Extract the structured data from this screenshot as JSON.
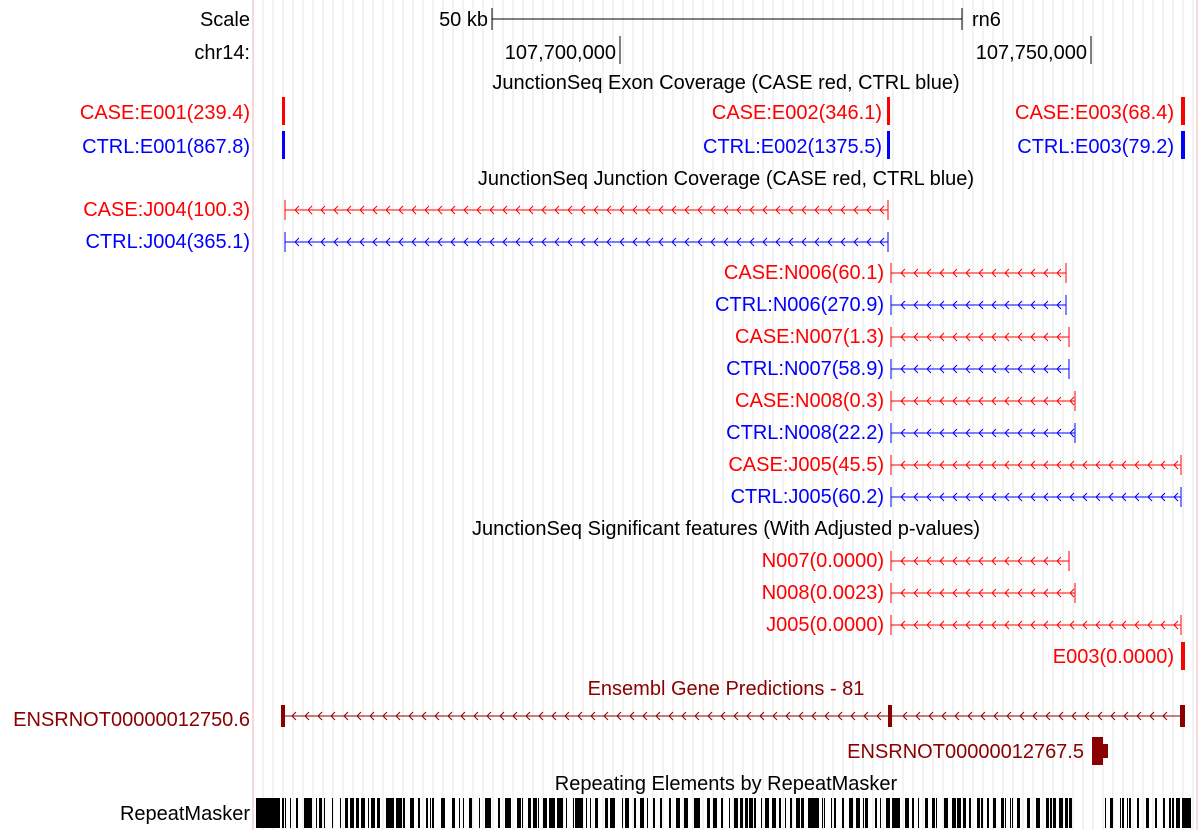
{
  "ruler": {
    "scale_label": "Scale",
    "chrom_label": "chr14:",
    "scale_text": "50 kb",
    "assembly": "rn6",
    "ticks": [
      "107,700,000",
      "107,750,000"
    ]
  },
  "exon_track": {
    "title": "JunctionSeq Exon Coverage (CASE red, CTRL blue)",
    "case_label": "CASE:E001(239.4)",
    "ctrl_label": "CTRL:E001(867.8)",
    "items": [
      {
        "label": "CASE:E002(346.1)"
      },
      {
        "label": "CASE:E003(68.4)"
      },
      {
        "label": "CTRL:E002(1375.5)"
      },
      {
        "label": "CTRL:E003(79.2)"
      }
    ]
  },
  "junction_track": {
    "title": "JunctionSeq Junction Coverage (CASE red, CTRL blue)",
    "case_label": "CASE:J004(100.3)",
    "ctrl_label": "CTRL:J004(365.1)",
    "items": [
      {
        "label": "CASE:N006(60.1)"
      },
      {
        "label": "CTRL:N006(270.9)"
      },
      {
        "label": "CASE:N007(1.3)"
      },
      {
        "label": "CTRL:N007(58.9)"
      },
      {
        "label": "CASE:N008(0.3)"
      },
      {
        "label": "CTRL:N008(22.2)"
      },
      {
        "label": "CASE:J005(45.5)"
      },
      {
        "label": "CTRL:J005(60.2)"
      }
    ]
  },
  "sig_track": {
    "title": "JunctionSeq Significant features (With Adjusted p-values)",
    "items": [
      {
        "label": "N007(0.0000)"
      },
      {
        "label": "N008(0.0023)"
      },
      {
        "label": "J005(0.0000)"
      },
      {
        "label": "E003(0.0000)"
      }
    ]
  },
  "ensembl_track": {
    "title": "Ensembl Gene Predictions - 81",
    "left_label": "ENSRNOT00000012750.6",
    "item_label": "ENSRNOT00000012767.5"
  },
  "repeat_track": {
    "title": "Repeating Elements by RepeatMasker",
    "side_label": "RepeatMasker"
  },
  "colors": {
    "case": "#ff0000",
    "ctrl": "#0000ff",
    "ensembl": "#8b0000",
    "grid": "#e0e0e0"
  }
}
